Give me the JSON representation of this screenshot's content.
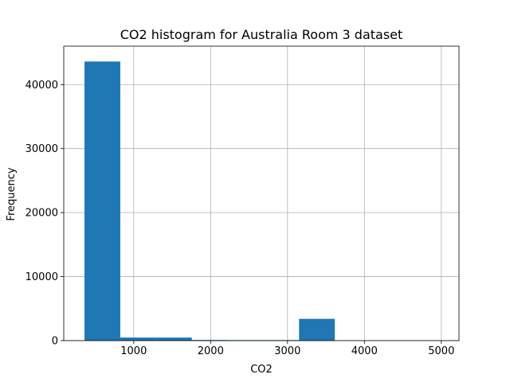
{
  "chart_data": {
    "type": "bar",
    "title": "CO2 histogram for Australia Room 3 dataset",
    "xlabel": "CO2",
    "ylabel": "Frequency",
    "xlim": [
      90,
      5230
    ],
    "ylim": [
      0,
      46000
    ],
    "grid": true,
    "bar_color": "#1f77b4",
    "xticks": [
      1000,
      2000,
      3000,
      4000,
      5000
    ],
    "yticks": [
      0,
      10000,
      20000,
      30000,
      40000
    ],
    "bins": [
      {
        "x0": 360,
        "x1": 825,
        "count": 43600
      },
      {
        "x0": 825,
        "x1": 1290,
        "count": 480
      },
      {
        "x0": 1290,
        "x1": 1755,
        "count": 480
      },
      {
        "x0": 1755,
        "x1": 2220,
        "count": 100
      },
      {
        "x0": 2220,
        "x1": 2685,
        "count": 80
      },
      {
        "x0": 2685,
        "x1": 3150,
        "count": 80
      },
      {
        "x0": 3150,
        "x1": 3615,
        "count": 3400
      },
      {
        "x0": 3615,
        "x1": 4080,
        "count": 0
      },
      {
        "x0": 4080,
        "x1": 4545,
        "count": 0
      },
      {
        "x0": 4545,
        "x1": 5010,
        "count": 0
      }
    ]
  }
}
